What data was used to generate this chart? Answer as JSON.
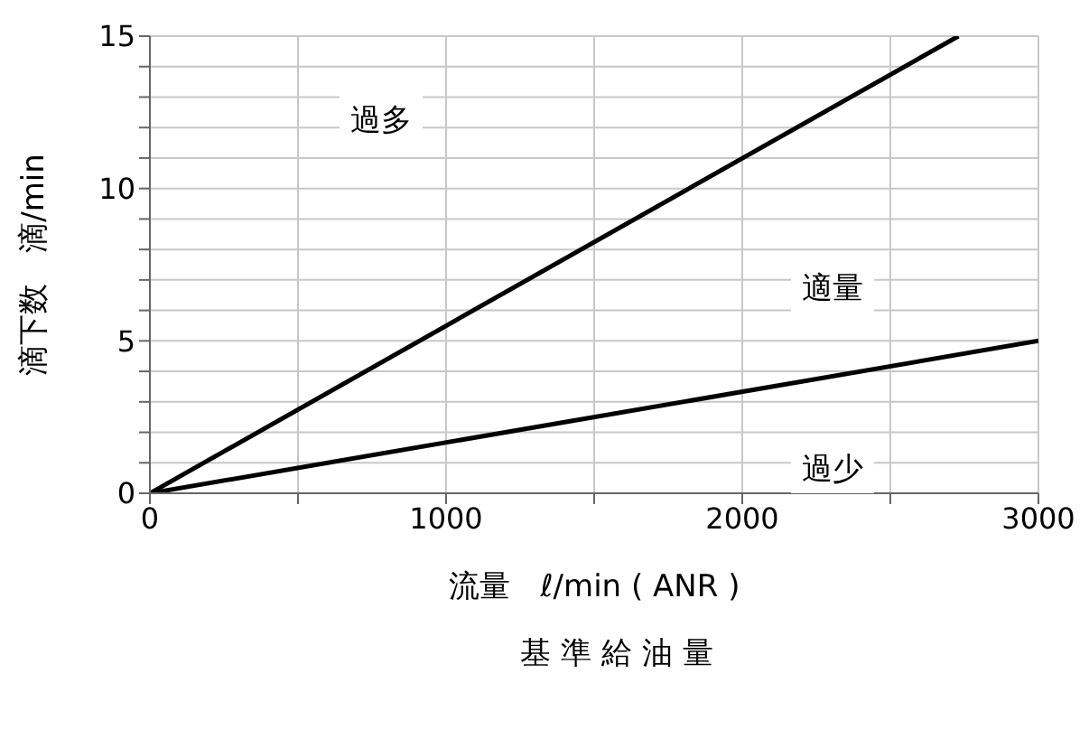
{
  "chart_data": {
    "type": "line",
    "xlabel": "流量　ℓ/min ( ANR )",
    "ylabel": "滴下数　滴/min",
    "annotations": [
      "過多",
      "適量",
      "過少",
      "基 準 給 油 量"
    ],
    "series": [
      {
        "color": "#000000",
        "x": [
          0,
          2730
        ],
        "values": [
          0,
          15
        ]
      },
      {
        "color": "#000000",
        "x": [
          0,
          3000
        ],
        "values": [
          0,
          5
        ]
      }
    ],
    "xlim": [
      0,
      3000
    ],
    "xticks": [
      0,
      {
        "value": 500,
        "label": null
      },
      1000,
      {
        "value": 1500,
        "label": null
      },
      2000,
      {
        "value": 2500,
        "label": null
      },
      3000
    ],
    "ylim": [
      0,
      15
    ],
    "yticks": [
      0,
      {
        "value": 1,
        "label": null
      },
      {
        "value": 2,
        "label": null
      },
      {
        "value": 3,
        "label": null
      },
      {
        "value": 4,
        "label": null
      },
      5,
      {
        "value": 6,
        "label": null
      },
      {
        "value": 7,
        "label": null
      },
      {
        "value": 8,
        "label": null
      },
      {
        "value": 9,
        "label": null
      },
      10,
      {
        "value": 11,
        "label": null
      },
      {
        "value": 12,
        "label": null
      },
      {
        "value": 13,
        "label": null
      },
      {
        "value": 14,
        "label": null
      },
      15
    ],
    "grid": true,
    "marker": "none",
    "line_style": "solid"
  }
}
